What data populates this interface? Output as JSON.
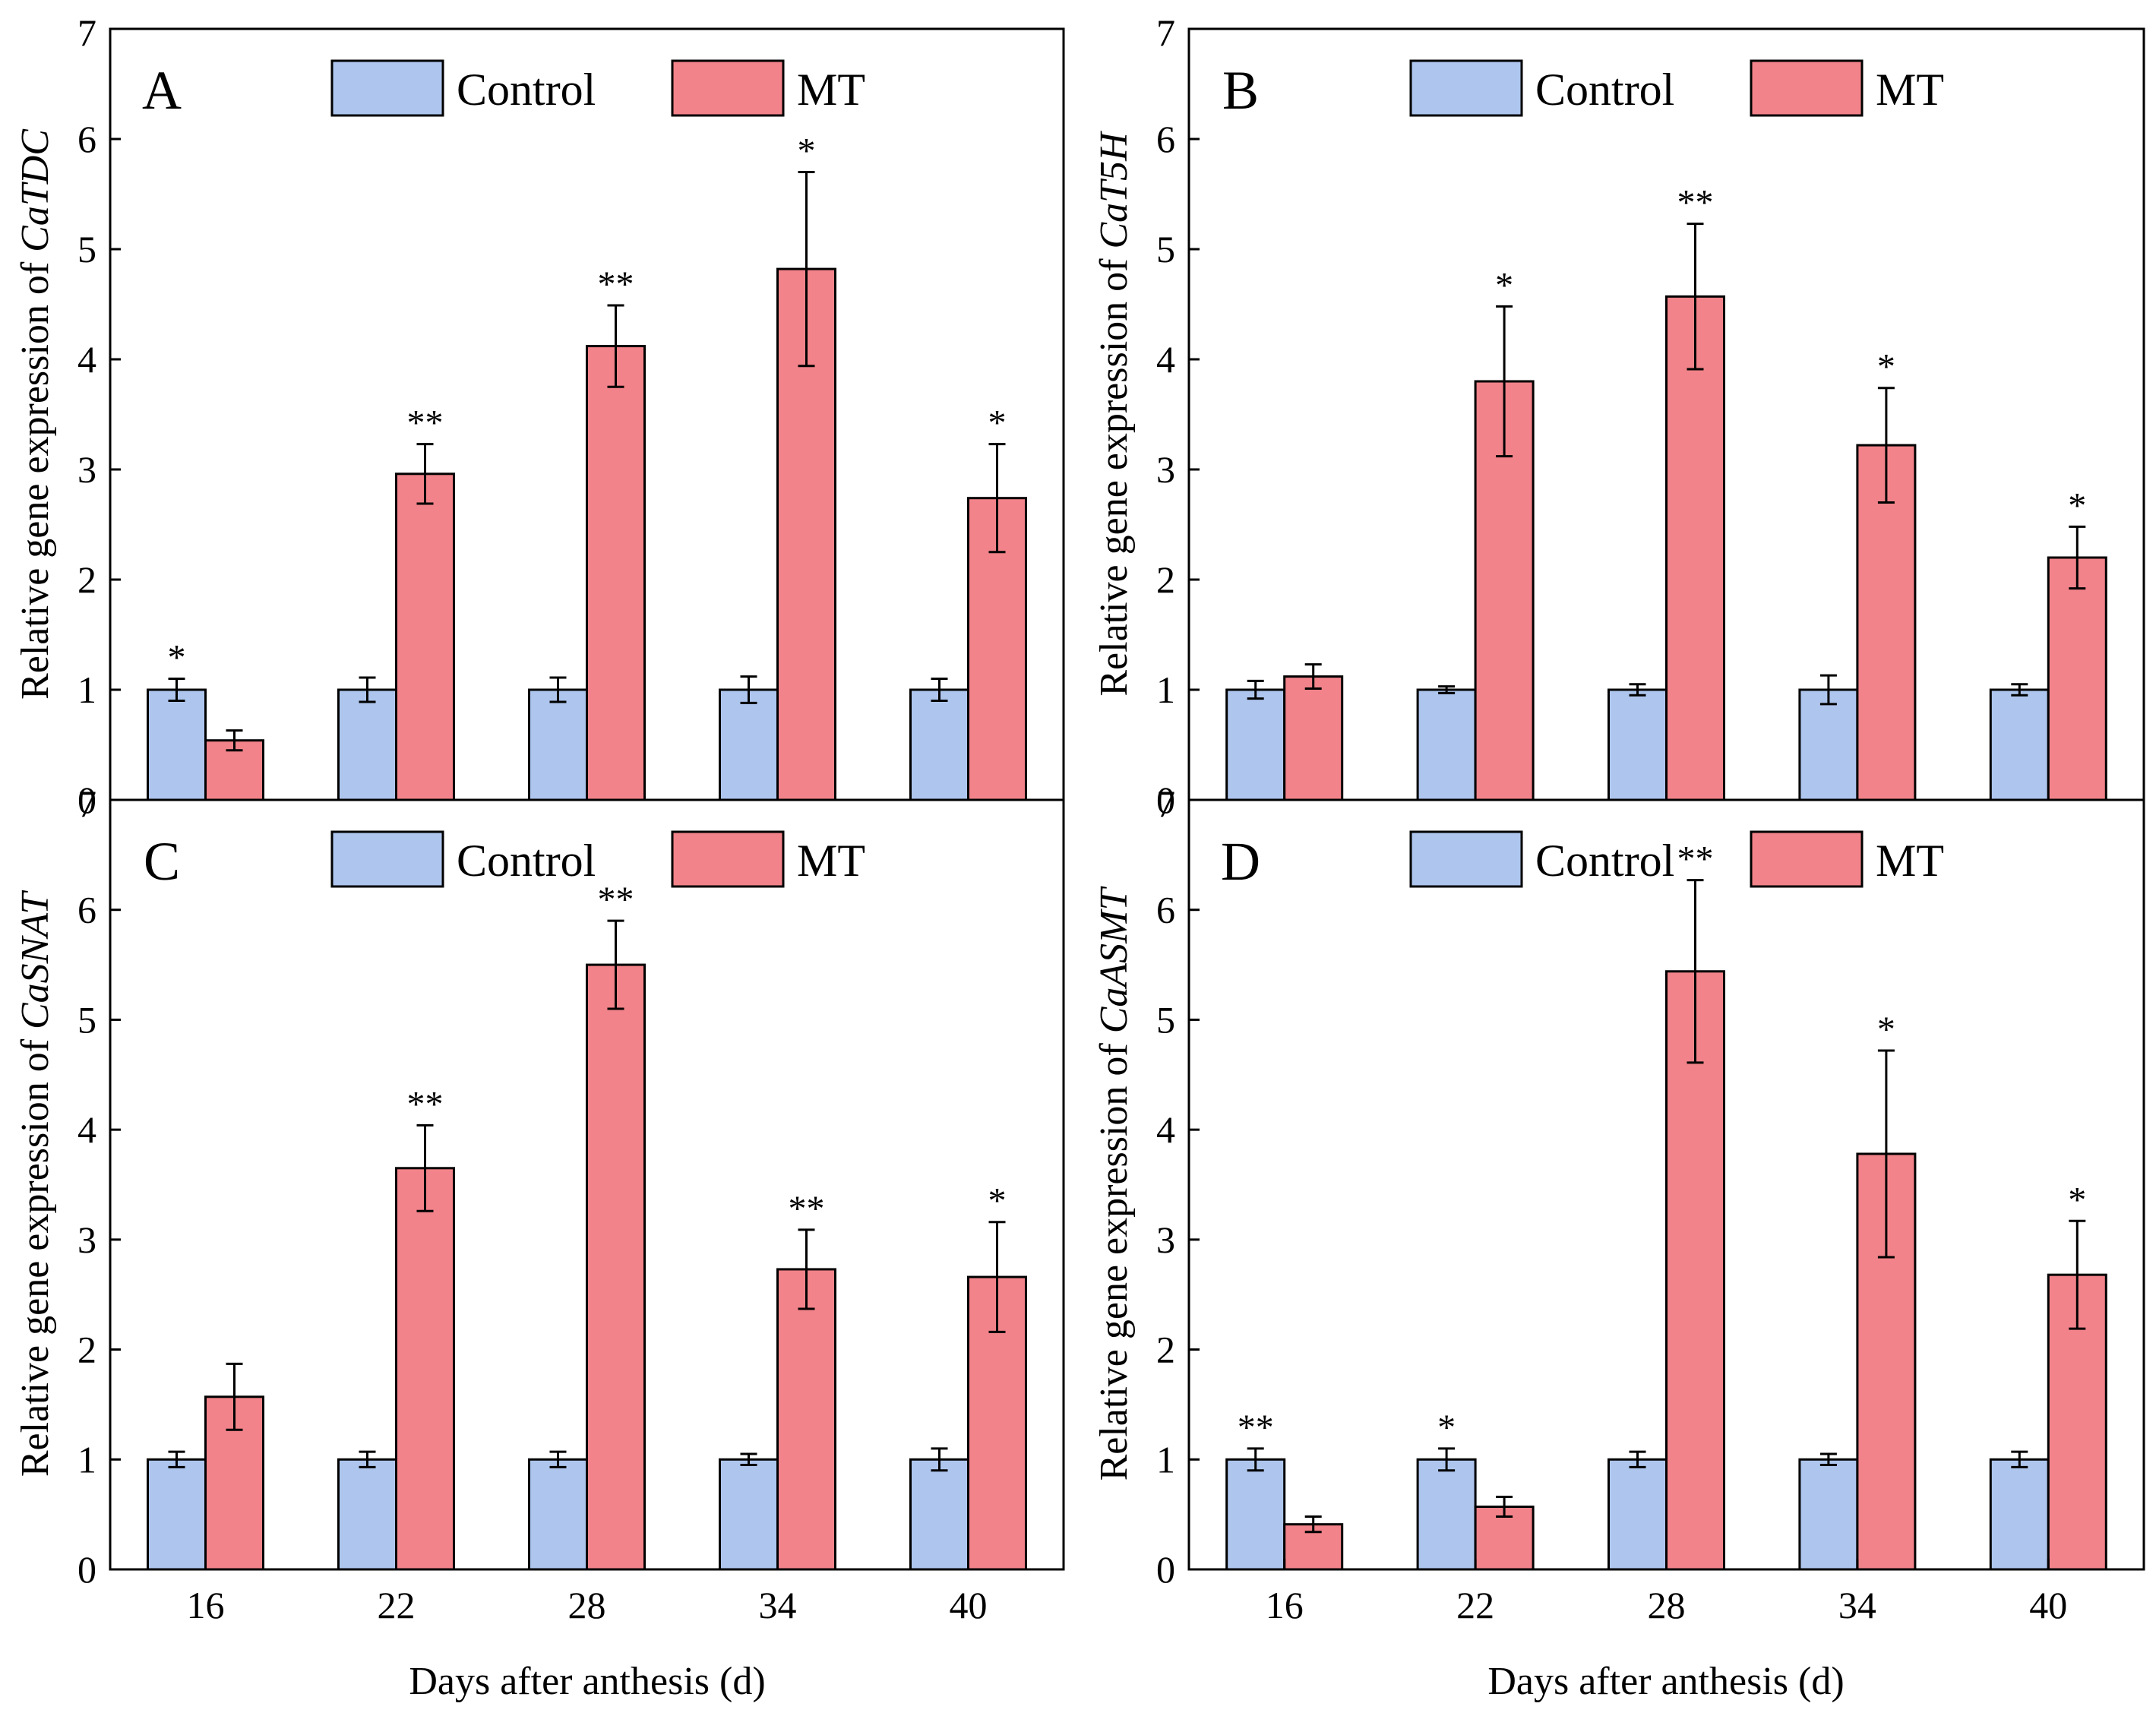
{
  "figure": {
    "xlabel": "Days after anthesis (d)",
    "ylabel_prefix": "Relative gene expression of ",
    "categories": [
      "16",
      "22",
      "28",
      "34",
      "40"
    ],
    "legend": [
      {
        "name": "Control",
        "color": "#AEC6EE"
      },
      {
        "name": "MT",
        "color": "#F2838A"
      }
    ]
  },
  "chart_data": [
    {
      "type": "bar",
      "panel": "A",
      "gene": "CaTDC",
      "categories": [
        "16",
        "22",
        "28",
        "34",
        "40"
      ],
      "ylim": [
        0,
        7
      ],
      "yticks": [
        0,
        1,
        2,
        3,
        4,
        5,
        6,
        7
      ],
      "series": [
        {
          "name": "Control",
          "values": [
            1.0,
            1.0,
            1.0,
            1.0,
            1.0
          ],
          "errors": [
            0.1,
            0.11,
            0.11,
            0.12,
            0.1
          ],
          "significance": [
            "*",
            "",
            "",
            "",
            ""
          ]
        },
        {
          "name": "MT",
          "values": [
            0.54,
            2.96,
            4.12,
            4.82,
            2.74
          ],
          "errors": [
            0.09,
            0.27,
            0.37,
            0.88,
            0.49
          ],
          "significance": [
            "",
            "**",
            "**",
            "*",
            "*"
          ]
        }
      ]
    },
    {
      "type": "bar",
      "panel": "B",
      "gene": "CaT5H",
      "categories": [
        "16",
        "22",
        "28",
        "34",
        "40"
      ],
      "ylim": [
        0,
        7
      ],
      "yticks": [
        0,
        1,
        2,
        3,
        4,
        5,
        6,
        7
      ],
      "series": [
        {
          "name": "Control",
          "values": [
            1.0,
            1.0,
            1.0,
            1.0,
            1.0
          ],
          "errors": [
            0.08,
            0.03,
            0.05,
            0.13,
            0.05
          ],
          "significance": [
            "",
            "",
            "",
            "",
            ""
          ]
        },
        {
          "name": "MT",
          "values": [
            1.12,
            3.8,
            4.57,
            3.22,
            2.2
          ],
          "errors": [
            0.11,
            0.68,
            0.66,
            0.52,
            0.28
          ],
          "significance": [
            "",
            "*",
            "**",
            "*",
            "*"
          ]
        }
      ]
    },
    {
      "type": "bar",
      "panel": "C",
      "gene": "CaSNAT",
      "categories": [
        "16",
        "22",
        "28",
        "34",
        "40"
      ],
      "ylim": [
        0,
        7
      ],
      "yticks": [
        0,
        1,
        2,
        3,
        4,
        5,
        6,
        7
      ],
      "series": [
        {
          "name": "Control",
          "values": [
            1.0,
            1.0,
            1.0,
            1.0,
            1.0
          ],
          "errors": [
            0.07,
            0.07,
            0.07,
            0.05,
            0.1
          ],
          "significance": [
            "",
            "",
            "",
            "",
            ""
          ]
        },
        {
          "name": "MT",
          "values": [
            1.57,
            3.65,
            5.5,
            2.73,
            2.66
          ],
          "errors": [
            0.3,
            0.39,
            0.4,
            0.36,
            0.5
          ],
          "significance": [
            "",
            "**",
            "**",
            "**",
            "*"
          ]
        }
      ]
    },
    {
      "type": "bar",
      "panel": "D",
      "gene": "CaASMT",
      "categories": [
        "16",
        "22",
        "28",
        "34",
        "40"
      ],
      "ylim": [
        0,
        7
      ],
      "yticks": [
        0,
        1,
        2,
        3,
        4,
        5,
        6,
        7
      ],
      "series": [
        {
          "name": "Control",
          "values": [
            1.0,
            1.0,
            1.0,
            1.0,
            1.0
          ],
          "errors": [
            0.1,
            0.1,
            0.07,
            0.05,
            0.07
          ],
          "significance": [
            "**",
            "*",
            "",
            "",
            ""
          ]
        },
        {
          "name": "MT",
          "values": [
            0.41,
            0.57,
            5.44,
            3.78,
            2.68
          ],
          "errors": [
            0.07,
            0.09,
            0.83,
            0.94,
            0.49
          ],
          "significance": [
            "",
            "",
            "**",
            "*",
            "*"
          ]
        }
      ]
    }
  ]
}
